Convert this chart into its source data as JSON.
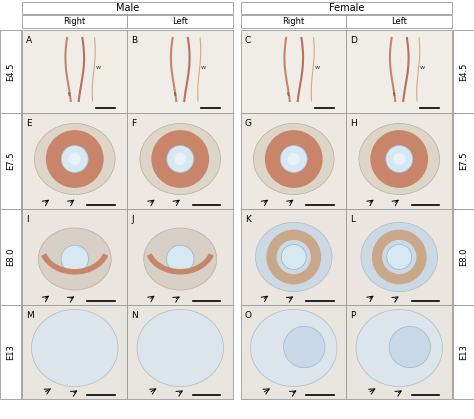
{
  "background": "#ffffff",
  "male_label": "Male",
  "female_label": "Female",
  "col_labels_male": [
    "Right",
    "Left"
  ],
  "col_labels_female": [
    "Right",
    "Left"
  ],
  "row_labels": [
    "E4.5",
    "E7.5",
    "E8.0",
    "E13"
  ],
  "panel_labels": [
    [
      "A",
      "B",
      "C",
      "D"
    ],
    [
      "E",
      "F",
      "G",
      "H"
    ],
    [
      "I",
      "J",
      "K",
      "L"
    ],
    [
      "M",
      "N",
      "O",
      "P"
    ]
  ],
  "panel_bg": "#f2ede8",
  "panel_bg_light": "#eef2f5",
  "tissue_brown": "#c8856a",
  "tissue_brown2": "#b87060",
  "tissue_blue": "#c5d8e8",
  "lumen_blue": "#d8e8f2",
  "border_color": "#aaaaaa",
  "text_color": "#111111",
  "arrow_color": "#111111",
  "scalebar_color": "#000000"
}
